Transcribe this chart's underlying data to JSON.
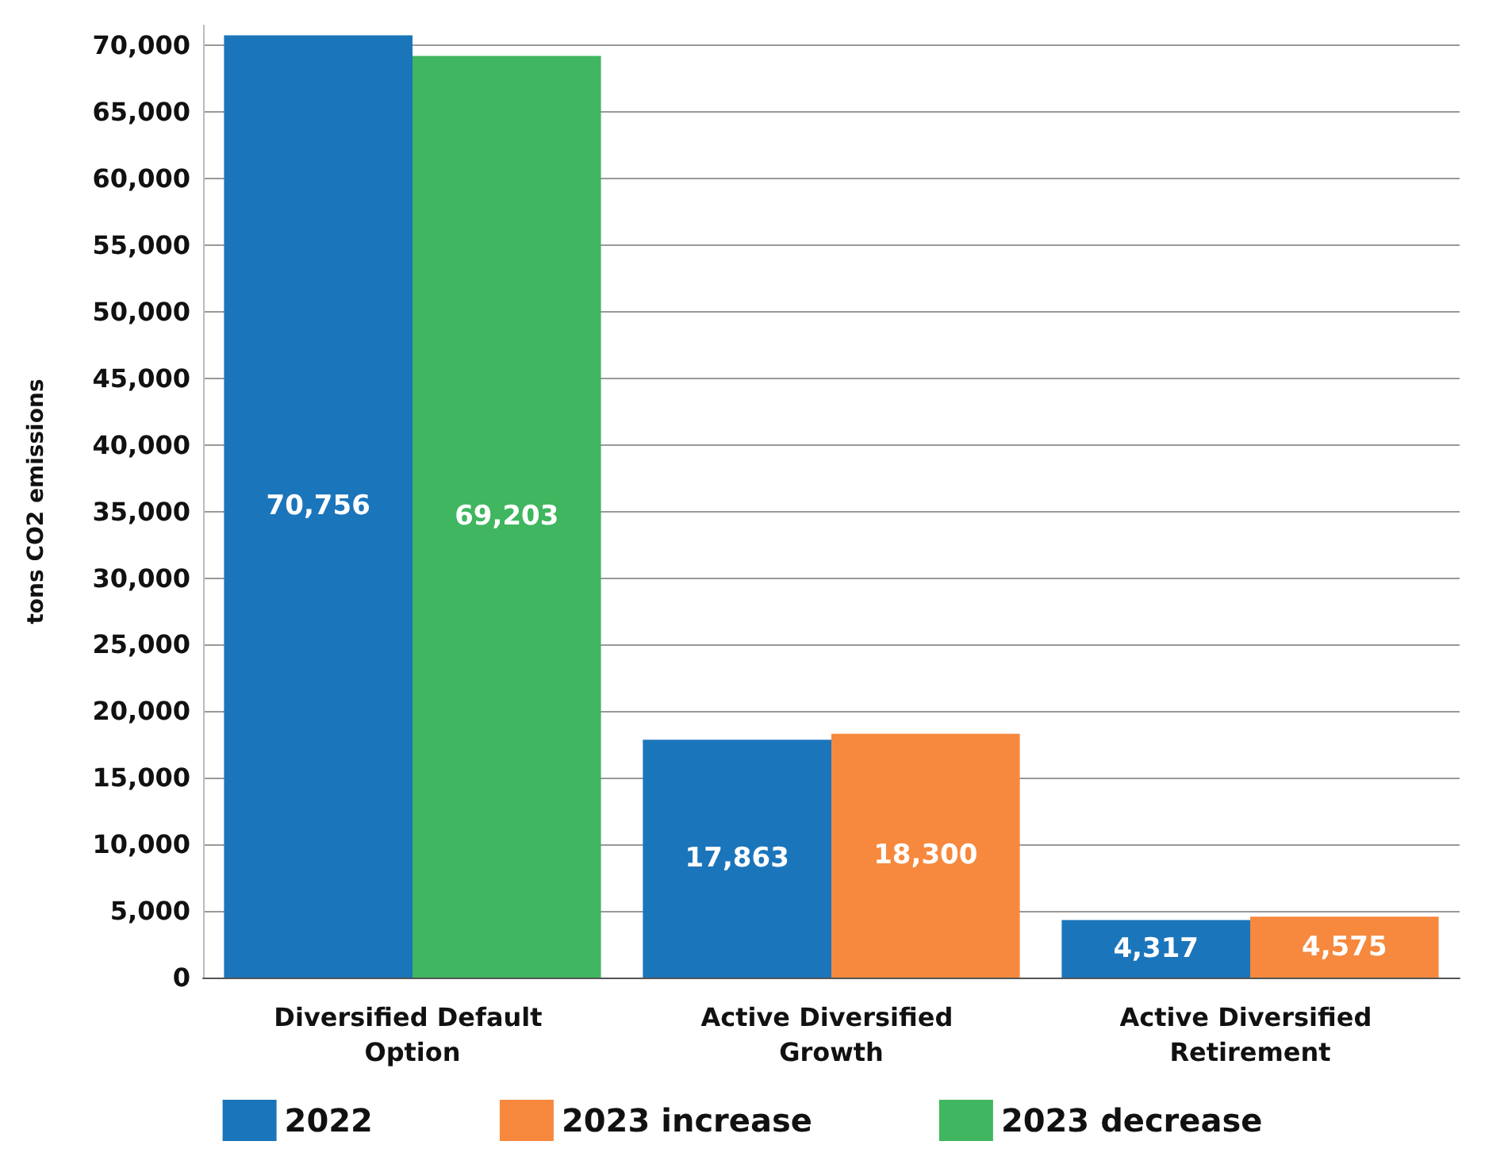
{
  "chart_data": {
    "type": "bar",
    "ylabel": "tons CO2 emissions",
    "categories": [
      "Diversified Default Option",
      "Active Diversified Growth",
      "Active Diversified Retirement"
    ],
    "series": [
      {
        "name": "2022",
        "color": "#1b75bb",
        "values": [
          70756,
          17863,
          4317
        ],
        "value_labels": [
          "70,756",
          "17,863",
          "4,317"
        ]
      },
      {
        "name": "2023 increase",
        "color": "#f6893d",
        "values": [
          null,
          18300,
          4575
        ],
        "value_labels": [
          null,
          "18,300",
          "4,575"
        ]
      },
      {
        "name": "2023 decrease",
        "color": "#3fb65f",
        "values": [
          69203,
          null,
          null
        ],
        "value_labels": [
          "69,203",
          null,
          null
        ]
      }
    ],
    "ylim": [
      0,
      71500
    ],
    "yticks": [
      0,
      {
        "value": 5000,
        "label": "5,000"
      },
      {
        "value": 10000,
        "label": "10,000"
      },
      {
        "value": 15000,
        "label": "15,000"
      },
      {
        "value": 20000,
        "label": "20,000"
      },
      {
        "value": 25000,
        "label": "25,000"
      },
      {
        "value": 30000,
        "label": "30,000"
      },
      {
        "value": 35000,
        "label": "35,000"
      },
      {
        "value": 40000,
        "label": "40,000"
      },
      {
        "value": 45000,
        "label": "45,000"
      },
      {
        "value": 50000,
        "label": "50,000"
      },
      {
        "value": 55000,
        "label": "55,000"
      },
      {
        "value": 60000,
        "label": "60,000"
      },
      {
        "value": 65000,
        "label": "65,000"
      },
      {
        "value": 70000,
        "label": "70,000"
      }
    ],
    "grid": "y",
    "legend": "bottom"
  }
}
